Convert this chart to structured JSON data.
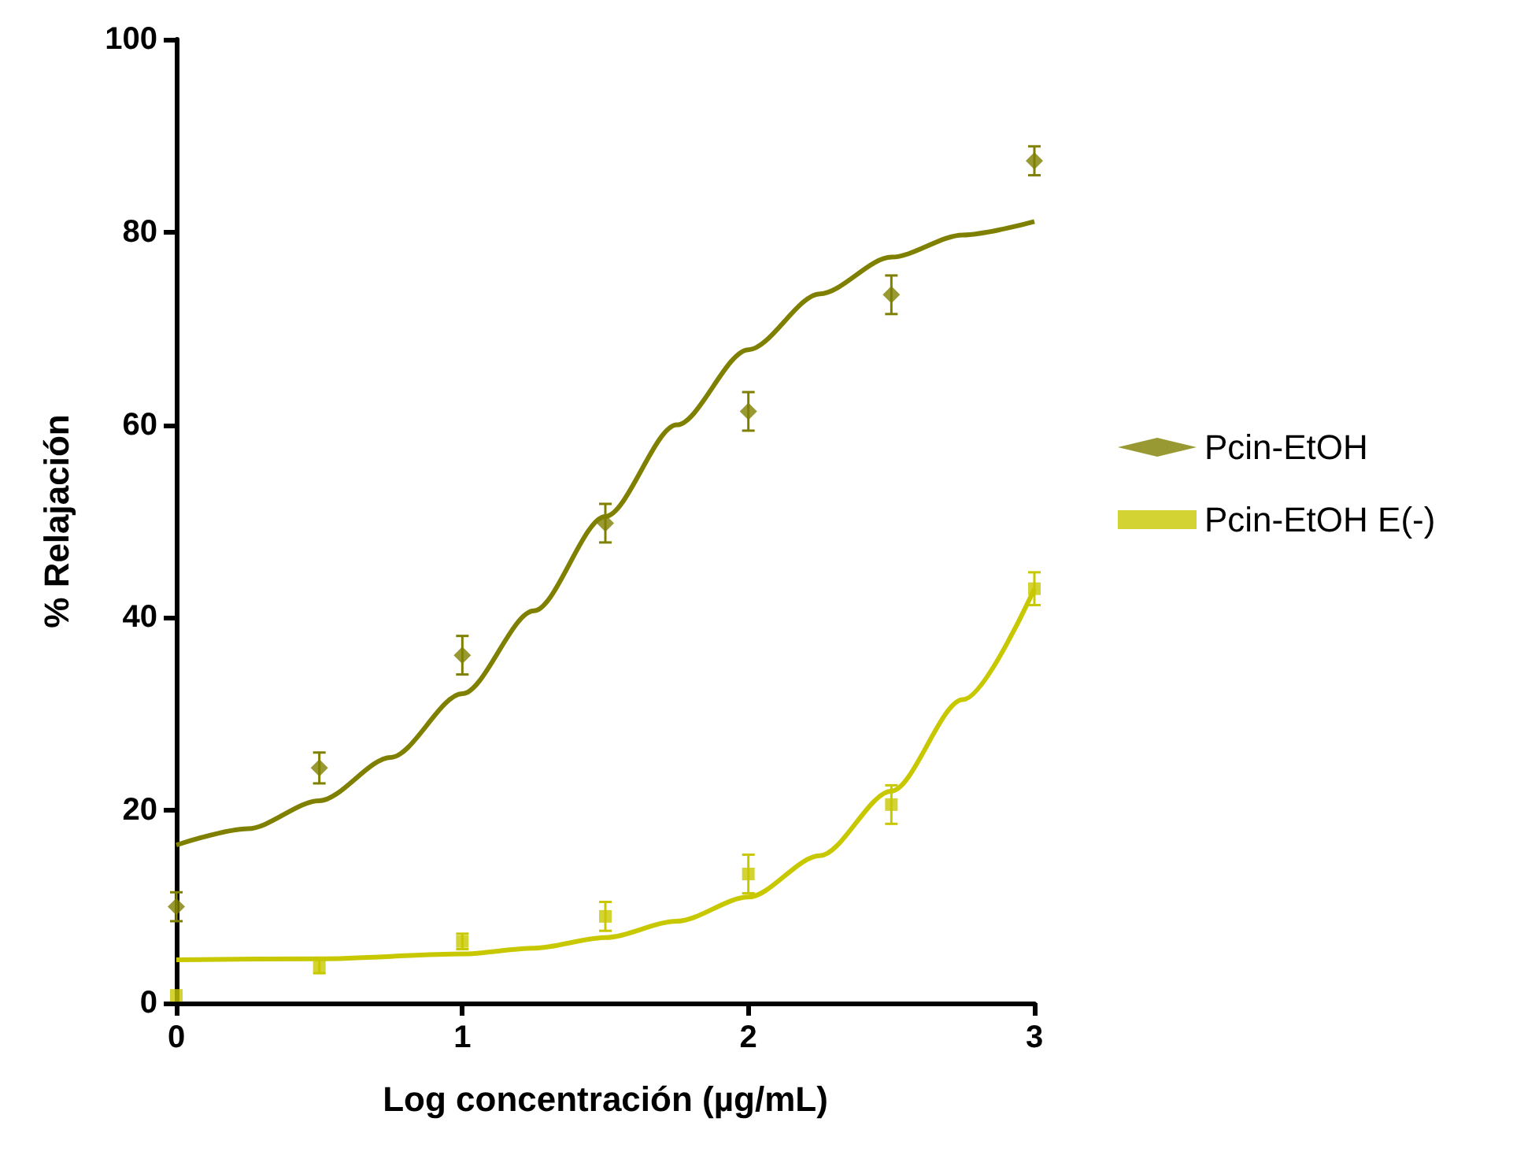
{
  "chart_data": {
    "type": "scatter",
    "xlabel": "Log concentración (µg/mL)",
    "ylabel": "% Relajación",
    "xlim": [
      0,
      3
    ],
    "xticks": [
      0,
      1,
      2,
      3
    ],
    "ylim": [
      0,
      100
    ],
    "yticks": [
      0,
      20,
      40,
      60,
      80,
      100
    ],
    "grid": false,
    "legend": "right",
    "series": [
      {
        "name": "Pcin-EtOH",
        "color": "#7f7f00",
        "marker": "diamond",
        "x": [
          0,
          0.5,
          1,
          1.5,
          2,
          2.5,
          3
        ],
        "values": [
          10,
          24.4,
          36.1,
          49.8,
          61.4,
          73.5,
          87.4
        ],
        "errors": [
          1.5,
          1.6,
          2,
          2,
          2,
          2,
          1.5
        ]
      },
      {
        "name": "Pcin-EtOH E(-)",
        "color": "#c8c800",
        "marker": "square",
        "x": [
          0,
          0.5,
          1,
          1.5,
          2,
          2.5,
          3
        ],
        "values": [
          0.8,
          3.8,
          6.4,
          9,
          13.4,
          20.6,
          43
        ],
        "errors": [
          null,
          0.7,
          0.8,
          1.5,
          2,
          2,
          1.7
        ]
      },
      {
        "type": "line",
        "color": "#7f7f00",
        "x": [
          0,
          0.25,
          0.5,
          0.75,
          1,
          1.25,
          1.5,
          1.75,
          2,
          2.25,
          2.5,
          2.75,
          3
        ],
        "values": [
          16.4,
          18.1,
          21,
          25.5,
          32.1,
          40.7,
          50.5,
          60,
          67.8,
          73.6,
          77.4,
          79.7,
          81.1
        ]
      },
      {
        "type": "line",
        "color": "#c8c800",
        "x": [
          0,
          0.5,
          1,
          1.25,
          1.5,
          1.75,
          2,
          2.25,
          2.5,
          2.75,
          3
        ],
        "values": [
          4.5,
          4.6,
          5.1,
          5.7,
          6.8,
          8.5,
          11,
          15.3,
          22,
          31.5,
          43
        ]
      }
    ]
  }
}
